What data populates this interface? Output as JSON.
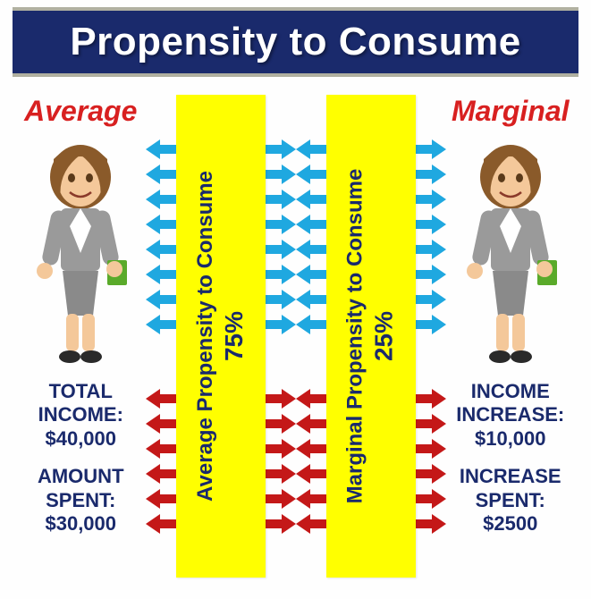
{
  "title": "Propensity to Consume",
  "colors": {
    "title_bg": "#1a2a6c",
    "title_text": "#ffffff",
    "label_red": "#d82020",
    "yellow": "#ffff00",
    "data_text": "#1a2a6c",
    "arrow_blue": "#1fa8e0",
    "arrow_red": "#c41818"
  },
  "left": {
    "label": "Average",
    "yellow_line1": "Average Propensity to Consume",
    "yellow_line2": "75%",
    "stat1_label": "TOTAL INCOME:",
    "stat1_value": "$40,000",
    "stat2_label": "AMOUNT SPENT:",
    "stat2_value": "$30,000"
  },
  "right": {
    "label": "Marginal",
    "yellow_line1": "Marginal Propensity to Consume",
    "yellow_line2": "25%",
    "stat1_label": "INCOME INCREASE:",
    "stat1_value": "$10,000",
    "stat2_label": "INCREASE SPENT:",
    "stat2_value": "$2500"
  },
  "arrows": {
    "blue_count": 8,
    "red_count": 6
  }
}
